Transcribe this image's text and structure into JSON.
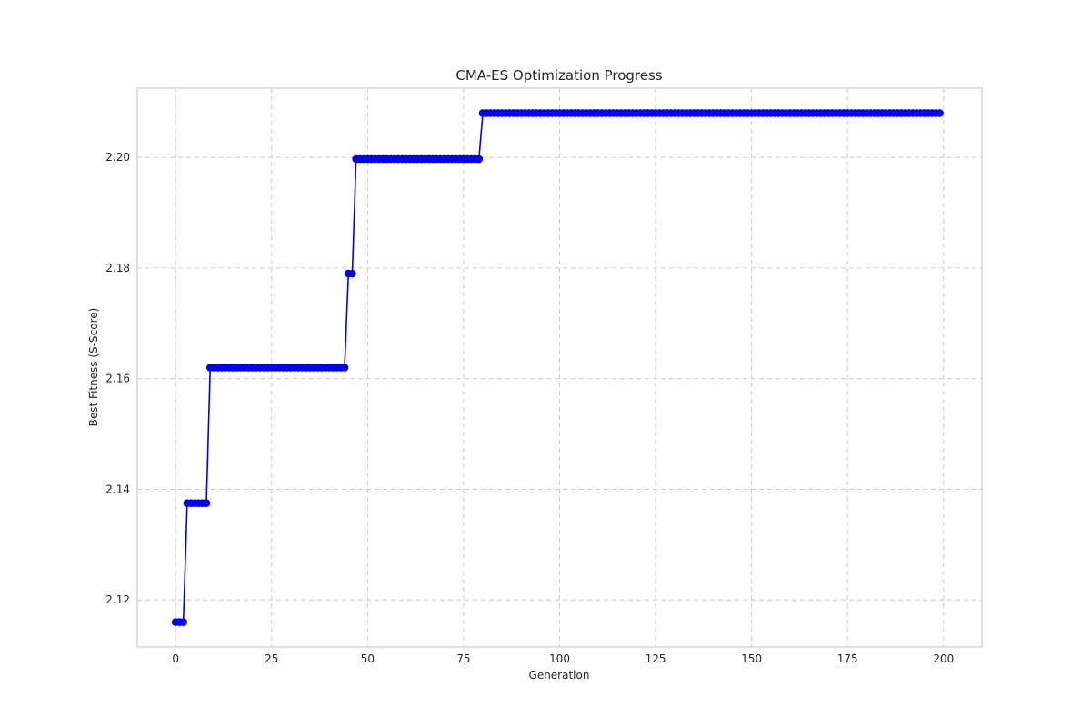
{
  "chart_data": {
    "type": "line",
    "title": "CMA-ES Optimization Progress",
    "xlabel": "Generation",
    "ylabel": "Best Fitness (S-Score)",
    "xlim": [
      -10,
      210
    ],
    "ylim": [
      2.1115,
      2.2125
    ],
    "xticks": [
      0,
      25,
      50,
      75,
      100,
      125,
      150,
      175,
      200
    ],
    "yticks": [
      2.12,
      2.14,
      2.16,
      2.18,
      2.2
    ],
    "xtick_labels": [
      "0",
      "25",
      "50",
      "75",
      "100",
      "125",
      "150",
      "175",
      "200"
    ],
    "ytick_labels": [
      "2.12",
      "2.14",
      "2.16",
      "2.18",
      "2.20"
    ],
    "grid": true,
    "marker": "circle",
    "series": [
      {
        "color": "#0000ff",
        "steps": [
          {
            "from": 0,
            "to": 2,
            "value": 2.116
          },
          {
            "from": 3,
            "to": 8,
            "value": 2.1375
          },
          {
            "from": 9,
            "to": 44,
            "value": 2.162
          },
          {
            "from": 45,
            "to": 46,
            "value": 2.179
          },
          {
            "from": 47,
            "to": 79,
            "value": 2.1997
          },
          {
            "from": 80,
            "to": 199,
            "value": 2.208
          }
        ]
      }
    ]
  }
}
